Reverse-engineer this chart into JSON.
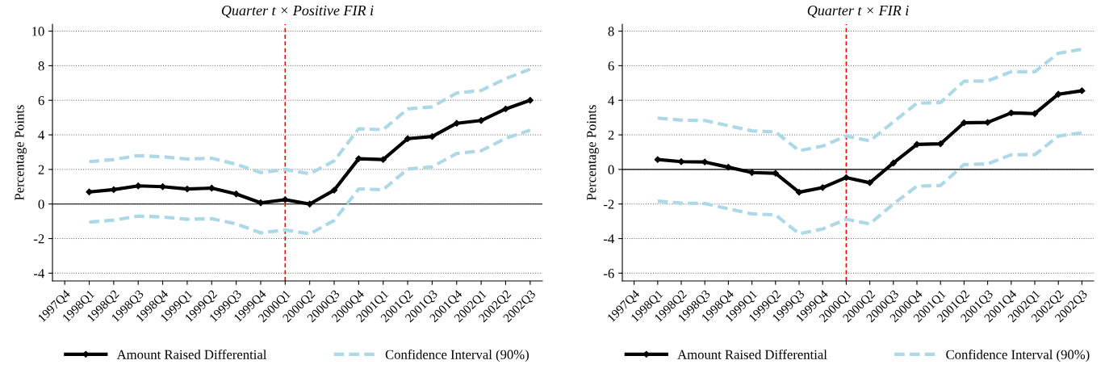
{
  "chart_data": [
    {
      "type": "line",
      "title": "Quarter t × Positive FIR i",
      "ylabel": "Percentage Points",
      "categories": [
        "1997Q4",
        "1998Q1",
        "1998Q2",
        "1998Q3",
        "1998Q4",
        "1999Q1",
        "1999Q2",
        "1999Q3",
        "1999Q4",
        "2000Q1",
        "2000Q2",
        "2000Q3",
        "2000Q4",
        "2001Q1",
        "2001Q2",
        "2001Q3",
        "2001Q4",
        "2002Q1",
        "2002Q2",
        "2002Q3"
      ],
      "series": [
        {
          "name": "Amount Raised Differential",
          "color": "#000000",
          "marker": "diamond",
          "line_style": "solid",
          "values": [
            null,
            0.7,
            0.83,
            1.05,
            1.0,
            0.87,
            0.92,
            0.58,
            0.07,
            0.25,
            0.0,
            0.8,
            2.62,
            2.57,
            3.78,
            3.9,
            4.67,
            4.83,
            5.5,
            6.0
          ]
        },
        {
          "name": "Confidence Interval (90%)",
          "color": "#add8e6",
          "line_style": "dashed",
          "values": [
            null,
            2.45,
            2.57,
            2.8,
            2.73,
            2.6,
            2.65,
            2.3,
            1.82,
            2.0,
            1.75,
            2.5,
            4.35,
            4.3,
            5.5,
            5.62,
            6.42,
            6.57,
            7.25,
            7.8
          ]
        },
        {
          "color": "#add8e6",
          "line_style": "dashed",
          "values": [
            null,
            -1.05,
            -0.93,
            -0.7,
            -0.75,
            -0.88,
            -0.85,
            -1.15,
            -1.67,
            -1.5,
            -1.73,
            -0.95,
            0.87,
            0.83,
            2.02,
            2.15,
            2.92,
            3.08,
            3.8,
            4.27
          ]
        }
      ],
      "ylim": [
        -4.45,
        10.4
      ],
      "yticks": [
        -4,
        -2,
        0,
        2,
        4,
        6,
        8,
        10
      ],
      "grid": "y",
      "legend": "bottom",
      "ref_lines": [
        {
          "axis": "y",
          "value": 0,
          "color": "#000000",
          "line_style": "solid"
        },
        {
          "axis": "x",
          "value": "2000Q1",
          "color": "#ff0000",
          "line_style": "dashed"
        }
      ]
    },
    {
      "type": "line",
      "title": "Quarter t × FIR i",
      "ylabel": "Percentage Points",
      "categories": [
        "1997Q4",
        "1998Q1",
        "1998Q2",
        "1998Q3",
        "1998Q4",
        "1999Q1",
        "1999Q2",
        "1999Q3",
        "1999Q4",
        "2000Q1",
        "2000Q2",
        "2000Q3",
        "2000Q4",
        "2001Q1",
        "2001Q2",
        "2001Q3",
        "2001Q4",
        "2002Q1",
        "2002Q2",
        "2002Q3"
      ],
      "series": [
        {
          "name": "Amount Raised Differential",
          "color": "#000000",
          "marker": "diamond",
          "line_style": "solid",
          "values": [
            null,
            0.57,
            0.45,
            0.43,
            0.13,
            -0.18,
            -0.22,
            -1.32,
            -1.05,
            -0.47,
            -0.77,
            0.37,
            1.45,
            1.48,
            2.7,
            2.72,
            3.27,
            3.23,
            4.35,
            4.55
          ]
        },
        {
          "name": "Confidence Interval (90%)",
          "color": "#add8e6",
          "line_style": "dashed",
          "values": [
            null,
            2.97,
            2.85,
            2.83,
            2.53,
            2.23,
            2.17,
            1.08,
            1.35,
            1.93,
            1.65,
            2.75,
            3.83,
            3.87,
            5.1,
            5.12,
            5.65,
            5.65,
            6.72,
            6.95
          ]
        },
        {
          "color": "#add8e6",
          "line_style": "dashed",
          "values": [
            null,
            -1.83,
            -1.95,
            -1.97,
            -2.28,
            -2.57,
            -2.63,
            -3.72,
            -3.45,
            -2.88,
            -3.15,
            -2.0,
            -0.97,
            -0.93,
            0.28,
            0.32,
            0.85,
            0.85,
            1.93,
            2.12
          ]
        }
      ],
      "ylim": [
        -6.45,
        8.4
      ],
      "yticks": [
        -6,
        -4,
        -2,
        0,
        2,
        4,
        6,
        8
      ],
      "grid": "y",
      "legend": "bottom",
      "ref_lines": [
        {
          "axis": "y",
          "value": 0,
          "color": "#000000",
          "line_style": "solid"
        },
        {
          "axis": "x",
          "value": "2000Q1",
          "color": "#ff0000",
          "line_style": "dashed"
        }
      ]
    }
  ]
}
